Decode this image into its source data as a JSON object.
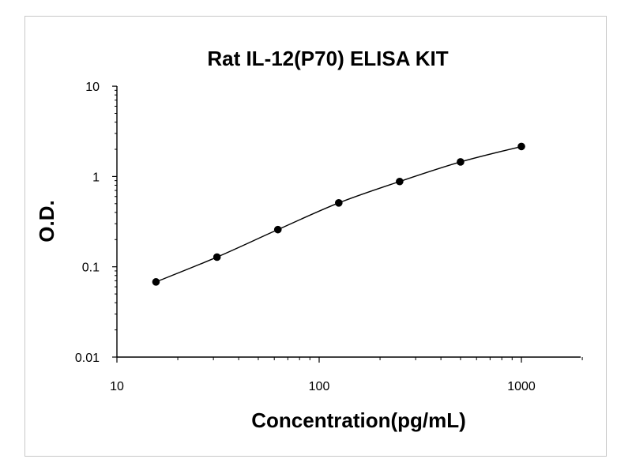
{
  "chart_data": {
    "type": "line",
    "title": "Rat IL-12(P70) ELISA KIT",
    "xlabel": "Concentration(pg/mL)",
    "ylabel": "O.D.",
    "xscale": "log",
    "yscale": "log",
    "xlim": [
      10,
      2000
    ],
    "ylim": [
      0.01,
      10
    ],
    "x_ticks": [
      "10",
      "100",
      "1000"
    ],
    "y_ticks": [
      "10",
      "1",
      "0.1",
      "0.01"
    ],
    "grid": false,
    "legend": "none",
    "series": [
      {
        "x": [
          15.6,
          31.25,
          62.5,
          125,
          250,
          500,
          1000
        ],
        "y": [
          0.068,
          0.128,
          0.258,
          0.51,
          0.88,
          1.45,
          2.15
        ],
        "marker": "circle",
        "color": "#000000"
      }
    ]
  }
}
